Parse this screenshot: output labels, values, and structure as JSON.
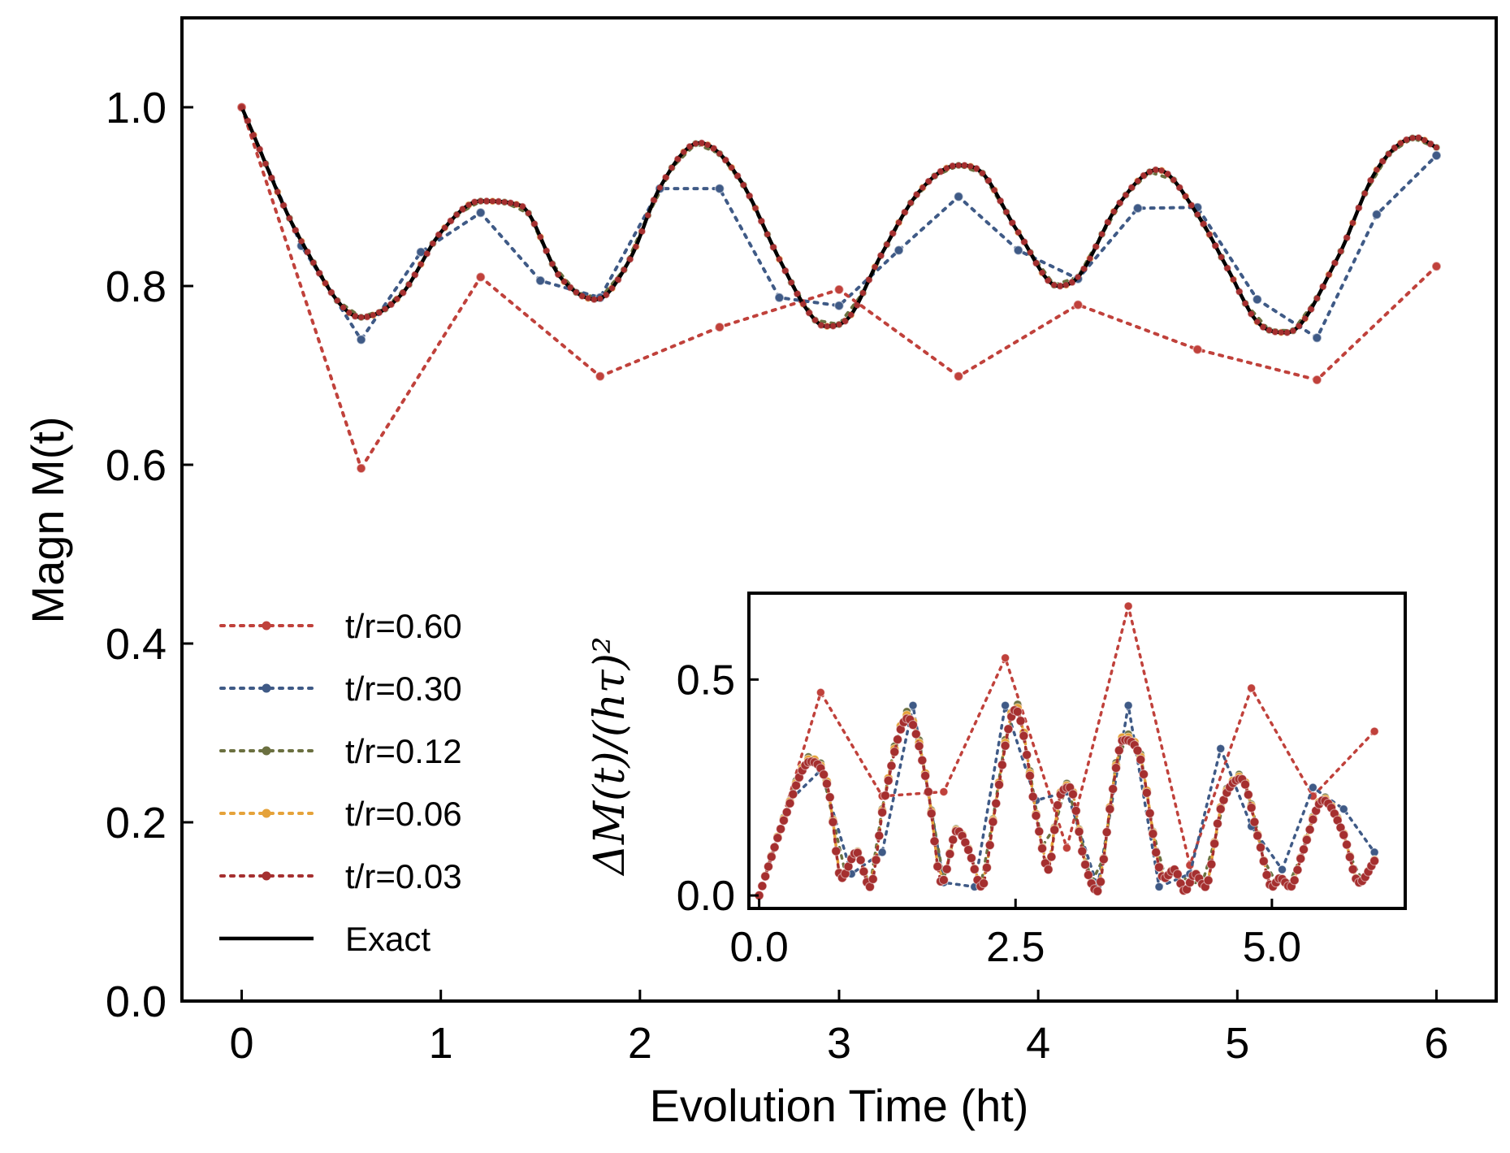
{
  "chart_data": [
    {
      "type": "line",
      "panel": "main",
      "title": "",
      "xlabel": "Evolution Time (ht)",
      "ylabel": "Magn M(t)",
      "xlim": [
        -0.3,
        6.3
      ],
      "ylim": [
        0.0,
        1.1
      ],
      "xticks": [
        0,
        1,
        2,
        3,
        4,
        5,
        6
      ],
      "xtick_labels": [
        "0",
        "1",
        "2",
        "3",
        "4",
        "5",
        "6"
      ],
      "yticks": [
        0.0,
        0.2,
        0.4,
        0.6,
        0.8,
        1.0
      ],
      "ytick_labels": [
        "0.0",
        "0.2",
        "0.4",
        "0.6",
        "0.8",
        "1.0"
      ],
      "grid": false,
      "legend_position": "lower-left",
      "series": [
        {
          "name": "t/r=0.60",
          "color": "#c0413b",
          "style": "dotted-markers",
          "dt": 0.6,
          "x": [
            0,
            0.6,
            1.2,
            1.8,
            2.4,
            3.0,
            3.6,
            4.2,
            4.8,
            5.4,
            6.0
          ],
          "y": [
            1.0,
            0.596,
            0.81,
            0.699,
            0.754,
            0.796,
            0.699,
            0.779,
            0.729,
            0.695,
            0.822
          ]
        },
        {
          "name": "t/r=0.30",
          "color": "#3f5a86",
          "style": "dotted-markers",
          "dt": 0.3,
          "x": [
            0,
            0.3,
            0.6,
            0.9,
            1.2,
            1.5,
            1.8,
            2.1,
            2.4,
            2.7,
            3.0,
            3.3,
            3.6,
            3.9,
            4.2,
            4.5,
            4.8,
            5.1,
            5.4,
            5.7,
            6.0
          ],
          "y": [
            1.0,
            0.845,
            0.74,
            0.838,
            0.882,
            0.806,
            0.787,
            0.909,
            0.909,
            0.787,
            0.778,
            0.84,
            0.9,
            0.84,
            0.808,
            0.887,
            0.888,
            0.785,
            0.742,
            0.88,
            0.946
          ]
        },
        {
          "name": "t/r=0.12",
          "color": "#6b7040",
          "style": "dotted-markers",
          "dt": 0.12
        },
        {
          "name": "t/r=0.06",
          "color": "#e5a23a",
          "style": "dotted-markers",
          "dt": 0.06
        },
        {
          "name": "t/r=0.03",
          "color": "#a52f2f",
          "style": "dotted-markers",
          "dt": 0.03
        },
        {
          "name": "Exact",
          "color": "#000000",
          "style": "solid",
          "x": [
            0,
            0.3,
            0.6,
            0.8,
            1.0,
            1.2,
            1.4,
            1.6,
            1.78,
            1.95,
            2.1,
            2.3,
            2.5,
            2.7,
            2.85,
            2.93,
            3.05,
            3.2,
            3.4,
            3.6,
            3.7,
            3.9,
            4.1,
            4.2,
            4.4,
            4.6,
            4.8,
            4.95,
            5.1,
            5.25,
            5.5,
            5.7,
            5.9,
            6.0
          ],
          "y": [
            1.0,
            0.85,
            0.765,
            0.79,
            0.86,
            0.895,
            0.89,
            0.81,
            0.785,
            0.83,
            0.91,
            0.96,
            0.92,
            0.83,
            0.77,
            0.755,
            0.765,
            0.83,
            0.905,
            0.935,
            0.93,
            0.86,
            0.8,
            0.81,
            0.89,
            0.93,
            0.88,
            0.82,
            0.76,
            0.748,
            0.83,
            0.93,
            0.966,
            0.955
          ]
        }
      ]
    },
    {
      "type": "line",
      "panel": "inset",
      "title": "",
      "xlabel": "",
      "ylabel": "ΔM(t)/(hτ)²",
      "xlim": [
        -0.1,
        6.3
      ],
      "ylim": [
        -0.03,
        0.7
      ],
      "xticks": [
        0.0,
        2.5,
        5.0
      ],
      "xtick_labels": [
        "0.0",
        "2.5",
        "5.0"
      ],
      "yticks": [
        0.0,
        0.5
      ],
      "ytick_labels": [
        "0.0",
        "0.5"
      ],
      "grid": false,
      "series": [
        {
          "name": "t/r=0.60",
          "color": "#c0413b",
          "x": [
            0,
            0.6,
            1.2,
            1.8,
            2.4,
            3.0,
            3.6,
            4.2,
            4.8,
            5.4,
            6.0
          ],
          "y": [
            0.0,
            0.47,
            0.23,
            0.24,
            0.55,
            0.11,
            0.67,
            0.07,
            0.48,
            0.23,
            0.38
          ]
        },
        {
          "name": "t/r=0.30",
          "color": "#3f5a86",
          "x": [
            0,
            0.3,
            0.6,
            0.9,
            1.2,
            1.5,
            1.8,
            2.1,
            2.4,
            2.7,
            3.0,
            3.3,
            3.6,
            3.9,
            4.2,
            4.5,
            4.8,
            5.1,
            5.4,
            5.7,
            6.0
          ],
          "y": [
            0.0,
            0.22,
            0.29,
            0.05,
            0.1,
            0.44,
            0.03,
            0.02,
            0.44,
            0.22,
            0.24,
            0.02,
            0.44,
            0.02,
            0.05,
            0.34,
            0.16,
            0.06,
            0.25,
            0.2,
            0.1
          ]
        },
        {
          "name": "t/r=0.12",
          "color": "#6b7040",
          "dt": 0.12
        },
        {
          "name": "t/r=0.06",
          "color": "#e5a23a",
          "dt": 0.06
        },
        {
          "name": "t/r=0.03",
          "color": "#a52f2f",
          "dt": 0.03
        }
      ],
      "fine_curve": {
        "x": [
          0,
          0.25,
          0.5,
          0.68,
          0.8,
          0.95,
          1.08,
          1.22,
          1.45,
          1.65,
          1.78,
          1.93,
          2.05,
          2.17,
          2.3,
          2.5,
          2.72,
          2.82,
          2.92,
          3.03,
          3.17,
          3.3,
          3.42,
          3.55,
          3.7,
          3.95,
          4.05,
          4.15,
          4.25,
          4.35,
          4.5,
          4.7,
          4.88,
          5.0,
          5.08,
          5.18,
          5.3,
          5.5,
          5.7,
          5.85,
          6.0
        ],
        "y": [
          0.0,
          0.18,
          0.31,
          0.24,
          0.04,
          0.1,
          0.02,
          0.22,
          0.41,
          0.24,
          0.03,
          0.15,
          0.1,
          0.02,
          0.2,
          0.43,
          0.16,
          0.06,
          0.22,
          0.25,
          0.08,
          0.01,
          0.2,
          0.36,
          0.33,
          0.04,
          0.06,
          0.01,
          0.05,
          0.02,
          0.2,
          0.27,
          0.12,
          0.02,
          0.04,
          0.02,
          0.1,
          0.22,
          0.14,
          0.03,
          0.08
        ]
      }
    }
  ],
  "legend": {
    "entries": [
      "t/r=0.60",
      "t/r=0.30",
      "t/r=0.12",
      "t/r=0.06",
      "t/r=0.03",
      "Exact"
    ]
  }
}
